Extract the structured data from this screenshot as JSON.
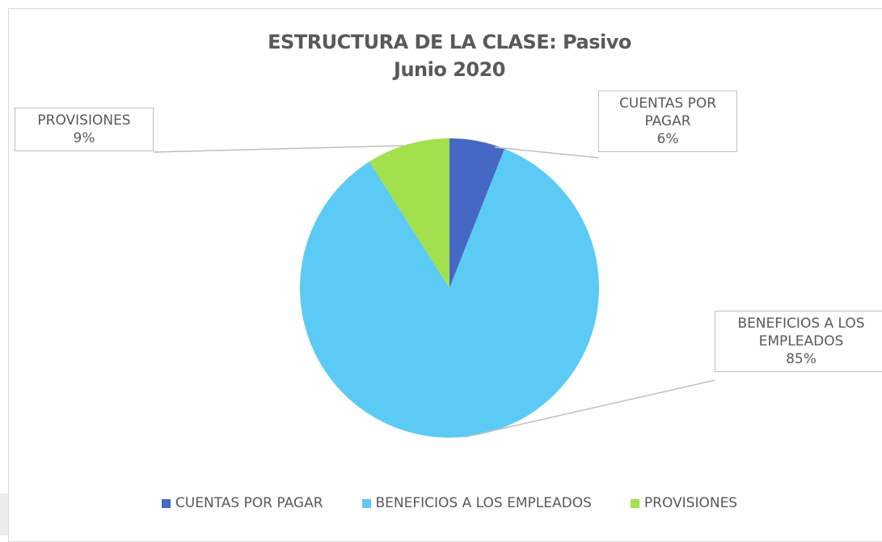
{
  "chart_data": {
    "type": "pie",
    "title": "ESTRUCTURA DE LA CLASE: Pasivo",
    "subtitle": "Junio 2020",
    "categories": [
      "CUENTAS POR PAGAR",
      "BENEFICIOS A LOS EMPLEADOS",
      "PROVISIONES"
    ],
    "values": [
      6,
      85,
      9
    ],
    "value_labels": [
      "6%",
      "85%",
      "9%"
    ],
    "colors": [
      "#4668c5",
      "#5bcbf5",
      "#a2e04e"
    ],
    "legend": "bottom"
  }
}
